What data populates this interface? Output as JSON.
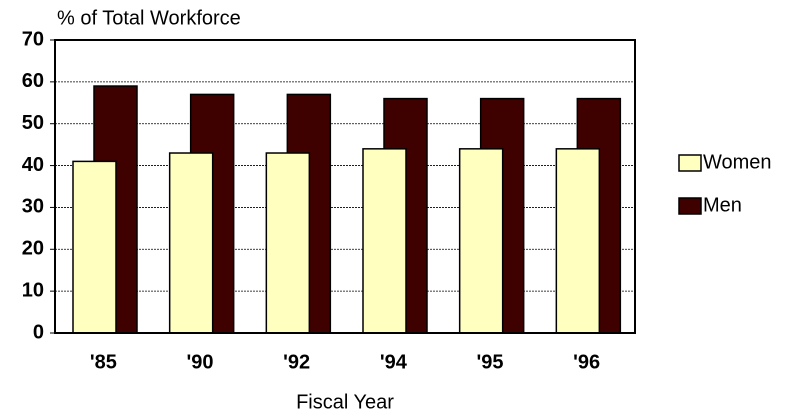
{
  "chart_data": {
    "type": "bar",
    "y_label": "% of Total Workforce",
    "x_label": "Fiscal Year",
    "categories": [
      "'85",
      "'90",
      "'92",
      "'94",
      "'95",
      "'96"
    ],
    "series": [
      {
        "name": "Women",
        "color": "#ffffc0",
        "values": [
          41,
          43,
          43,
          44,
          44,
          44
        ]
      },
      {
        "name": "Men",
        "color": "#3f0000",
        "values": [
          59,
          57,
          57,
          56,
          56,
          56
        ]
      }
    ],
    "ylim": [
      0,
      70
    ],
    "yticks": [
      0,
      10,
      20,
      30,
      40,
      50,
      60,
      70
    ],
    "grid": true,
    "legend": "right"
  }
}
